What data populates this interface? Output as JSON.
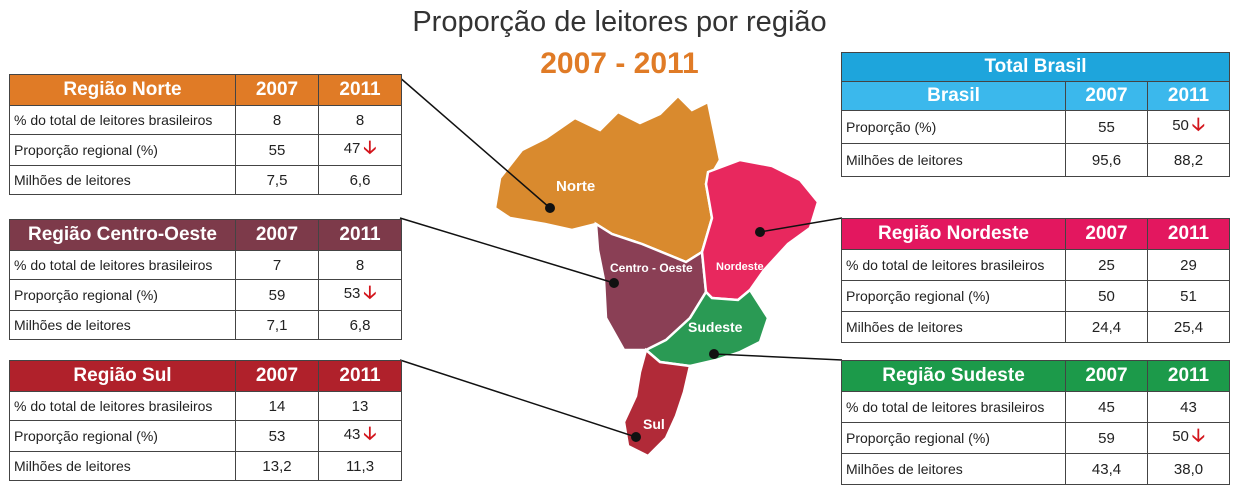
{
  "chart_data": {
    "type": "table",
    "title": "Proporção de leitores por região",
    "subtitle": "2007 - 2011",
    "columns": [
      "2007",
      "2011"
    ],
    "row_labels": [
      "% do total de leitores brasileiros",
      "Proporção regional (%)",
      "Milhões de leitores"
    ],
    "brasil": {
      "header": "Total Brasil",
      "subheader": "Brasil",
      "columns": [
        "2007",
        "2011"
      ],
      "rows": [
        {
          "label": "Proporção (%)",
          "v2007": "55",
          "v2011": "50",
          "decrease": true
        },
        {
          "label": "Milhões de leitores",
          "v2007": "95,6",
          "v2011": "88,2",
          "decrease": false
        }
      ]
    },
    "regions": [
      {
        "name": "Região Norte",
        "color": "#e07b26",
        "rows": [
          {
            "label": "% do total de leitores brasileiros",
            "v2007": "8",
            "v2011": "8",
            "decrease": false
          },
          {
            "label": "Proporção regional (%)",
            "v2007": "55",
            "v2011": "47",
            "decrease": true
          },
          {
            "label": "Milhões de leitores",
            "v2007": "7,5",
            "v2011": "6,6",
            "decrease": false
          }
        ]
      },
      {
        "name": "Região Centro-Oeste",
        "color": "#7d3a4a",
        "rows": [
          {
            "label": "% do total de leitores brasileiros",
            "v2007": "7",
            "v2011": "8",
            "decrease": false
          },
          {
            "label": "Proporção regional (%)",
            "v2007": "59",
            "v2011": "53",
            "decrease": true
          },
          {
            "label": "Milhões de leitores",
            "v2007": "7,1",
            "v2011": "6,8",
            "decrease": false
          }
        ]
      },
      {
        "name": "Região Sul",
        "color": "#b0212b",
        "rows": [
          {
            "label": "% do total de leitores brasileiros",
            "v2007": "14",
            "v2011": "13",
            "decrease": false
          },
          {
            "label": "Proporção regional (%)",
            "v2007": "53",
            "v2011": "43",
            "decrease": true
          },
          {
            "label": "Milhões de leitores",
            "v2007": "13,2",
            "v2011": "11,3",
            "decrease": false
          }
        ]
      },
      {
        "name": "Região Nordeste",
        "color": "#e3175f",
        "rows": [
          {
            "label": "% do total de leitores brasileiros",
            "v2007": "25",
            "v2011": "29",
            "decrease": false
          },
          {
            "label": "Proporção regional (%)",
            "v2007": "50",
            "v2011": "51",
            "decrease": false
          },
          {
            "label": "Milhões de leitores",
            "v2007": "24,4",
            "v2011": "25,4",
            "decrease": false
          }
        ]
      },
      {
        "name": "Região Sudeste",
        "color": "#1c9a4a",
        "rows": [
          {
            "label": "% do total de leitores brasileiros",
            "v2007": "45",
            "v2011": "43",
            "decrease": false
          },
          {
            "label": "Proporção regional (%)",
            "v2007": "59",
            "v2011": "50",
            "decrease": true
          },
          {
            "label": "Milhões de leitores",
            "v2007": "43,4",
            "v2011": "38,0",
            "decrease": false
          }
        ]
      }
    ],
    "map_labels": [
      "Norte",
      "Centro - Oeste",
      "Nordeste",
      "Sudeste",
      "Sul"
    ],
    "map_colors": {
      "norte": "#d98a2e",
      "centro_oeste": "#8a3f55",
      "nordeste": "#e8285e",
      "sudeste": "#2a9a54",
      "sul": "#b12a38"
    },
    "colors": {
      "brasil_header": "#1ea5dc",
      "brasil_sub": "#3bb8ec",
      "decrease_arrow": "#d3151c"
    }
  }
}
